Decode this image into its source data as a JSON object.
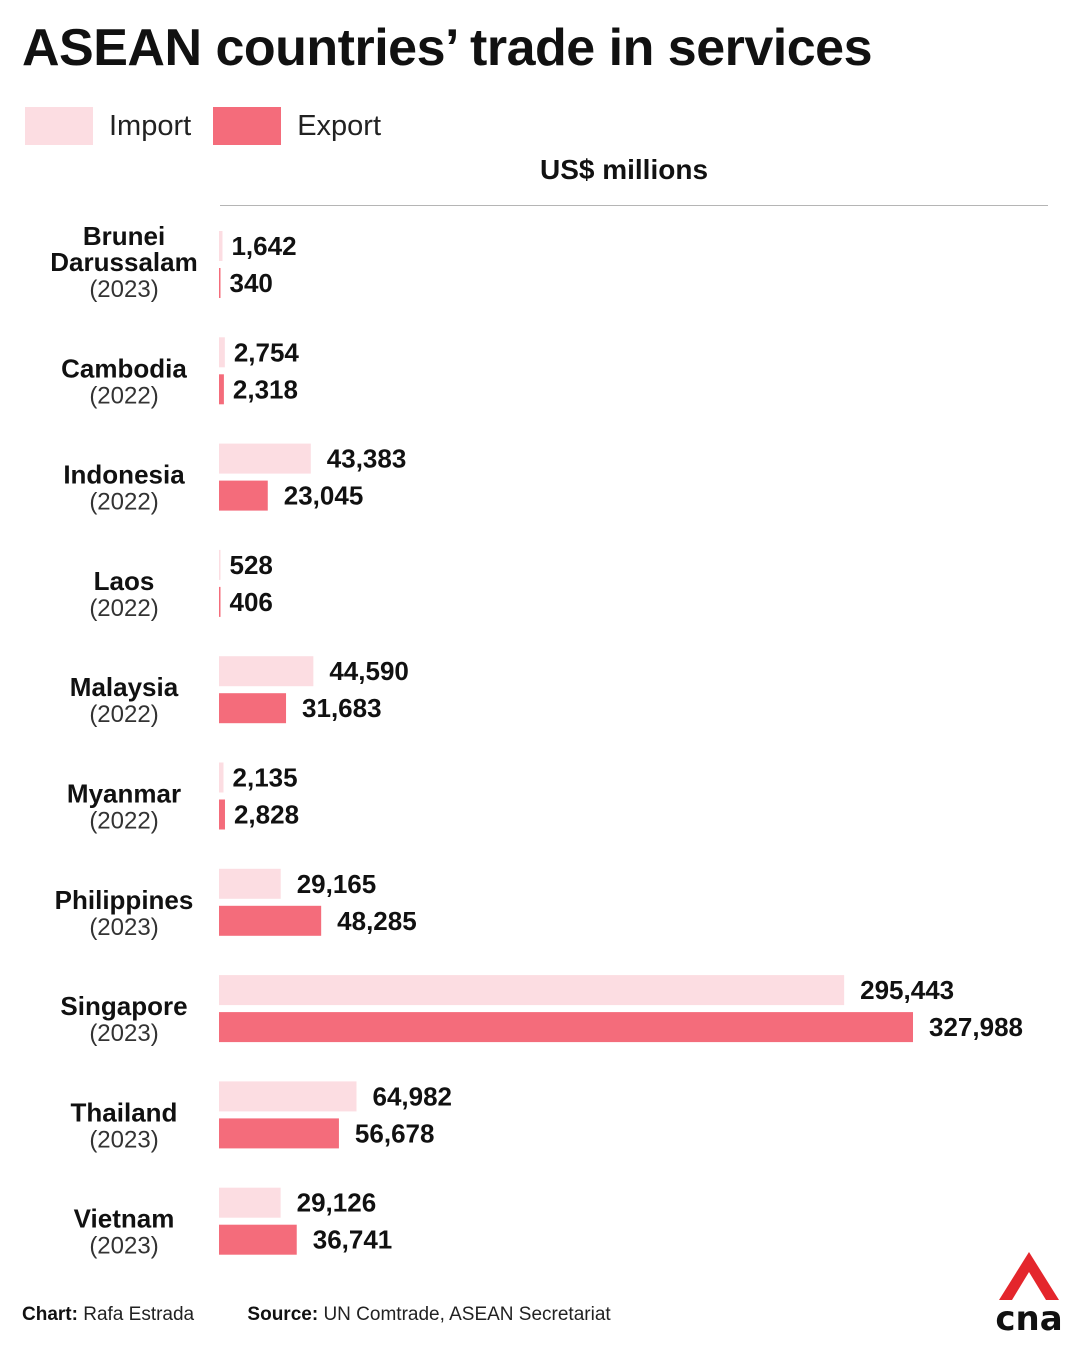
{
  "title": "ASEAN countries’ trade in services",
  "legend": [
    {
      "label": "Import",
      "color": "#fcdde2"
    },
    {
      "label": "Export",
      "color": "#f46c7b"
    }
  ],
  "footer": {
    "chart_label": "Chart:",
    "chart_author": "Rafa Estrada",
    "source_label": "Source:",
    "source_text": "UN Comtrade, ASEAN Secretariat"
  },
  "logo": {
    "text": "cna",
    "color_accent": "#e4262c",
    "color_text": "#111111"
  },
  "chart_data": {
    "type": "bar",
    "orientation": "horizontal",
    "title": "ASEAN countries’ trade in services",
    "unit_label": "US$ millions",
    "categories": [
      "Brunei Darussalam",
      "Cambodia",
      "Indonesia",
      "Laos",
      "Malaysia",
      "Myanmar",
      "Philippines",
      "Singapore",
      "Thailand",
      "Vietnam"
    ],
    "category_lines": [
      [
        "Brunei",
        "Darussalam"
      ],
      [
        "Cambodia"
      ],
      [
        "Indonesia"
      ],
      [
        "Laos"
      ],
      [
        "Malaysia"
      ],
      [
        "Myanmar"
      ],
      [
        "Philippines"
      ],
      [
        "Singapore"
      ],
      [
        "Thailand"
      ],
      [
        "Vietnam"
      ]
    ],
    "years": [
      "(2023)",
      "(2022)",
      "(2022)",
      "(2022)",
      "(2022)",
      "(2022)",
      "(2023)",
      "(2023)",
      "(2023)",
      "(2023)"
    ],
    "series": [
      {
        "name": "Import",
        "color": "#fcdde2",
        "values": [
          1642,
          2754,
          43383,
          528,
          44590,
          2135,
          29165,
          295443,
          64982,
          29126
        ],
        "labels": [
          "1,642",
          "2,754",
          "43,383",
          "528",
          "44,590",
          "2,135",
          "29,165",
          "295,443",
          "64,982",
          "29,126"
        ]
      },
      {
        "name": "Export",
        "color": "#f46c7b",
        "values": [
          340,
          2318,
          23045,
          406,
          31683,
          2828,
          48285,
          327988,
          56678,
          36741
        ],
        "labels": [
          "340",
          "2,318",
          "23,045",
          "406",
          "31,683",
          "2,828",
          "48,285",
          "327,988",
          "56,678",
          "36,741"
        ]
      }
    ],
    "xlim": [
      0,
      327988
    ],
    "grid": false,
    "legend_position": "top-left"
  }
}
